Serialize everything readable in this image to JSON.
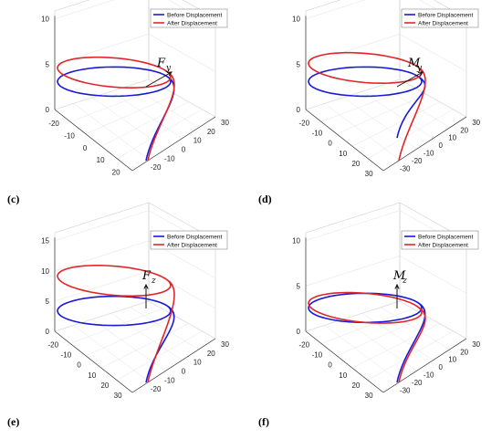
{
  "legend": {
    "before_label": "Before Displacement",
    "after_label": "After Displacement",
    "before_color": "#1a1ad6",
    "after_color": "#e0262a"
  },
  "chart_data": [
    {
      "type": "line",
      "panel": "(c)",
      "load": {
        "main": "F",
        "sub": "y"
      },
      "zlim": [
        0,
        10
      ],
      "z_ticks": [
        "0",
        "5",
        "10"
      ],
      "x_ticks": [
        "-20",
        "-10",
        "0",
        "10",
        "20"
      ],
      "y_ticks": [
        "30",
        "20",
        "10",
        "0",
        "-10",
        "-20"
      ],
      "series": [
        {
          "name": "Before Displacement",
          "color": "#1a1ad6",
          "coil_height": 5.5,
          "tail_end_z": 0
        },
        {
          "name": "After Displacement",
          "color": "#e0262a",
          "coil_height": 6.5,
          "tail_end_z": 0
        }
      ]
    },
    {
      "type": "line",
      "panel": "(d)",
      "load": {
        "main": "M",
        "sub": "y"
      },
      "zlim": [
        0,
        10
      ],
      "z_ticks": [
        "0",
        "5",
        "10"
      ],
      "x_ticks": [
        "-20",
        "-10",
        "0",
        "10",
        "20",
        "30"
      ],
      "y_ticks": [
        "30",
        "20",
        "10",
        "0",
        "-10",
        "-20",
        "-30"
      ],
      "series": [
        {
          "name": "Before Displacement",
          "color": "#1a1ad6",
          "coil_height": 5.5,
          "tail_end_z": 5
        },
        {
          "name": "After Displacement",
          "color": "#e0262a",
          "coil_height": 7,
          "tail_end_z": 0
        }
      ]
    },
    {
      "type": "line",
      "panel": "(e)",
      "load": {
        "main": "F",
        "sub": "z"
      },
      "zlim": [
        0,
        15
      ],
      "z_ticks": [
        "0",
        "5",
        "10",
        "15"
      ],
      "x_ticks": [
        "-20",
        "-10",
        "0",
        "10",
        "20",
        "30"
      ],
      "y_ticks": [
        "30",
        "20",
        "10",
        "0",
        "-10",
        "-20"
      ],
      "series": [
        {
          "name": "Before Displacement",
          "color": "#1a1ad6",
          "coil_height": 7,
          "tail_end_z": 0
        },
        {
          "name": "After Displacement",
          "color": "#e0262a",
          "coil_height": 12,
          "tail_end_z": 0
        }
      ]
    },
    {
      "type": "line",
      "panel": "(f)",
      "load": {
        "main": "M",
        "sub": "z"
      },
      "zlim": [
        0,
        10
      ],
      "z_ticks": [
        "0",
        "5",
        "10"
      ],
      "x_ticks": [
        "-20",
        "-10",
        "0",
        "10",
        "20",
        "30"
      ],
      "y_ticks": [
        "30",
        "20",
        "10",
        "0",
        "-10",
        "-20",
        "-30"
      ],
      "series": [
        {
          "name": "Before Displacement",
          "color": "#1a1ad6",
          "coil_height": 5,
          "tail_end_z": 0
        },
        {
          "name": "After Displacement",
          "color": "#e0262a",
          "coil_height": 5,
          "tail_end_z": 0
        }
      ]
    }
  ]
}
